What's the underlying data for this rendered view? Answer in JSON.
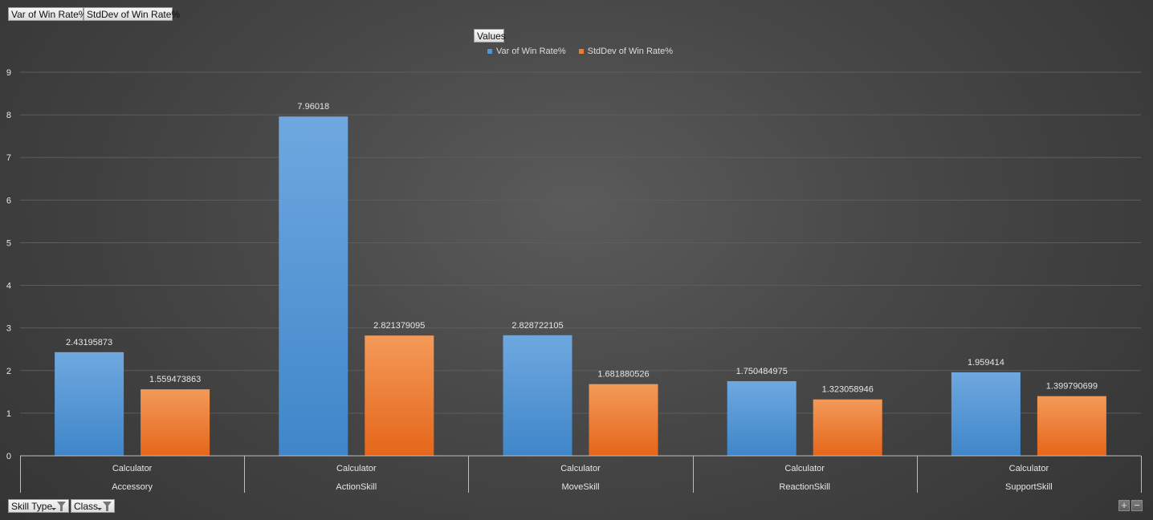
{
  "header": {
    "value_buttons": [
      "Var of Win Rate%",
      "StdDev of Win Rate%"
    ],
    "legend_title": "Values"
  },
  "filters": {
    "skill_type": "Skill Type",
    "class": "Class"
  },
  "zoom": {
    "in_label": "+",
    "out_label": "−"
  },
  "colors": {
    "blue_top": "#6fa8e0",
    "blue_bottom": "#3f86c9",
    "orange_top": "#f39a59",
    "orange_bottom": "#e5661a",
    "grid": "#5d5d5d",
    "axis_text": "#e6e6e6"
  },
  "chart_data": {
    "type": "bar",
    "categories": [
      "Accessory",
      "ActionSkill",
      "MoveSkill",
      "ReactionSkill",
      "SupportSkill"
    ],
    "subcategories": [
      "Calculator",
      "Calculator",
      "Calculator",
      "Calculator",
      "Calculator"
    ],
    "series": [
      {
        "name": "Var of Win Rate%",
        "values": [
          2.43195873,
          7.96018,
          2.828722105,
          1.750484975,
          1.959414
        ],
        "labels": [
          "2.43195873",
          "7.96018",
          "2.828722105",
          "1.750484975",
          "1.959414"
        ]
      },
      {
        "name": "StdDev of Win Rate%",
        "values": [
          1.559473863,
          2.821379095,
          1.681880526,
          1.323058946,
          1.399790699
        ],
        "labels": [
          "1.559473863",
          "2.821379095",
          "1.681880526",
          "1.323058946",
          "1.399790699"
        ]
      }
    ],
    "ylim": [
      0,
      9
    ],
    "yticks": [
      0,
      1,
      2,
      3,
      4,
      5,
      6,
      7,
      8,
      9
    ],
    "grid": true,
    "legend_position": "top"
  }
}
